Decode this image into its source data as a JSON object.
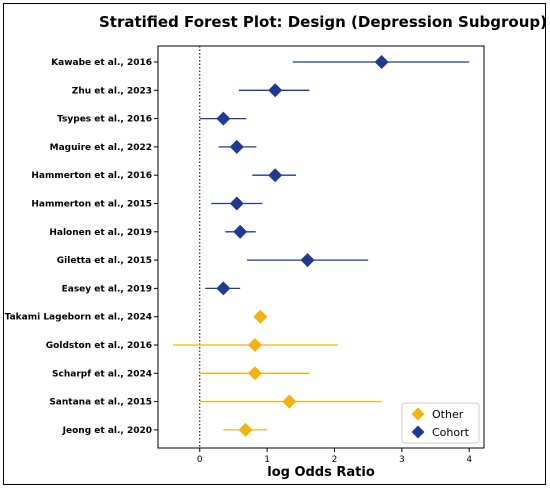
{
  "chart_data": {
    "type": "forest",
    "title": "Stratified Forest Plot: Design (Depression Subgroup)",
    "xlabel": "log Odds Ratio",
    "ylabel": "",
    "xlim": [
      -0.62,
      4.22
    ],
    "xticks": [
      0,
      1,
      2,
      3,
      4
    ],
    "reference_line": 0,
    "legend": {
      "placement": "bottom-right",
      "entries": [
        "Other",
        "Cohort"
      ]
    },
    "colors": {
      "Cohort": "#1f3a93",
      "Other": "#f4b20f"
    },
    "studies": [
      {
        "label": "Kawabe et al., 2016",
        "group": "Cohort",
        "estimate": 2.7,
        "ci": [
          1.38,
          4.0
        ]
      },
      {
        "label": "Zhu et al., 2023",
        "group": "Cohort",
        "estimate": 1.12,
        "ci": [
          0.58,
          1.63
        ]
      },
      {
        "label": "Tsypes et al., 2016",
        "group": "Cohort",
        "estimate": 0.35,
        "ci": [
          0.0,
          0.69
        ]
      },
      {
        "label": "Maguire et al., 2022",
        "group": "Cohort",
        "estimate": 0.55,
        "ci": [
          0.28,
          0.84
        ]
      },
      {
        "label": "Hammerton et al., 2016",
        "group": "Cohort",
        "estimate": 1.12,
        "ci": [
          0.78,
          1.43
        ]
      },
      {
        "label": "Hammerton et al., 2015",
        "group": "Cohort",
        "estimate": 0.55,
        "ci": [
          0.17,
          0.93
        ]
      },
      {
        "label": "Halonen et al., 2019",
        "group": "Cohort",
        "estimate": 0.6,
        "ci": [
          0.38,
          0.83
        ]
      },
      {
        "label": "Giletta et al., 2015",
        "group": "Cohort",
        "estimate": 1.6,
        "ci": [
          0.7,
          2.5
        ]
      },
      {
        "label": "Easey et al., 2019",
        "group": "Cohort",
        "estimate": 0.35,
        "ci": [
          0.08,
          0.6
        ]
      },
      {
        "label": "Takami Lageborn et al., 2024",
        "group": "Other",
        "estimate": 0.9,
        "ci": null
      },
      {
        "label": "Goldston et al., 2016",
        "group": "Other",
        "estimate": 0.82,
        "ci": [
          -0.4,
          2.05
        ]
      },
      {
        "label": "Scharpf et al., 2024",
        "group": "Other",
        "estimate": 0.82,
        "ci": [
          0.0,
          1.63
        ]
      },
      {
        "label": "Santana et al., 2015",
        "group": "Other",
        "estimate": 1.33,
        "ci": [
          0.0,
          2.7
        ]
      },
      {
        "label": "Jeong et al., 2020",
        "group": "Other",
        "estimate": 0.68,
        "ci": [
          0.35,
          1.0
        ]
      }
    ]
  }
}
